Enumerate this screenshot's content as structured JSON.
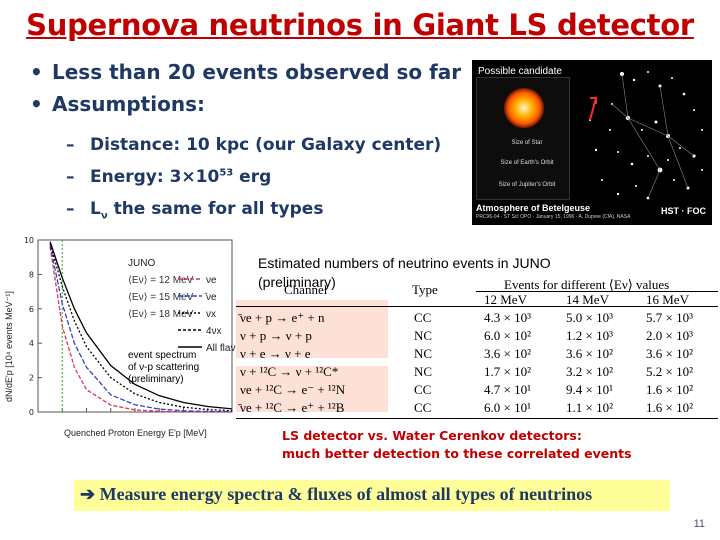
{
  "title": "Supernova neutrinos in Giant LS detector",
  "bullets": [
    "Less than 20 events observed so far",
    "Assumptions:"
  ],
  "sub_bullets": {
    "distance": "Distance: 10 kpc (our Galaxy center)",
    "energy_prefix": "Energy: 3×10",
    "energy_exp": "53",
    "energy_suffix": " erg",
    "lum_prefix": "L",
    "lum_sub": "ν",
    "lum_suffix": " the same for all types"
  },
  "betelgeuse": {
    "candidate": "Possible candidate",
    "size_star": "Size of Star",
    "size_earth": "Size of Earth's Orbit",
    "size_jupiter": "Size of Jupiter's Orbit",
    "caption": "Atmosphere of Betelgeuse",
    "caption_small": "PRC96-04 · ST ScI OPO · January 15, 1996 · A. Dupree (CfA), NASA",
    "credit": "HST · FOC"
  },
  "spectrum": {
    "ylabel": "dN/dE'p [10⁴ events MeV⁻¹]",
    "xlabel": "Quenched Proton Energy E'p [MeV]",
    "legend": [
      {
        "label": "⟨Eν⟩ = 12 MeV",
        "flavor": "νe"
      },
      {
        "label": "⟨Eν⟩ = 15 MeV",
        "flavor": "̄νe"
      },
      {
        "label": "⟨Eν⟩ = 18 MeV",
        "flavor": "νx"
      },
      {
        "label": "",
        "flavor": "4νx"
      },
      {
        "label": "",
        "flavor": "All flavors"
      }
    ],
    "legend_title": "JUNO",
    "event_label": [
      "event spectrum",
      "of ν-p scattering",
      "(preliminary)"
    ],
    "colors": {
      "nue": "#e0315a",
      "nuebar": "#3244c8",
      "nux": "#000000",
      "threshold": "#22aa22"
    }
  },
  "chart_data": {
    "type": "line",
    "title": "",
    "xlabel": "Quenched Proton Energy E'p [MeV]",
    "ylabel": "dN/dE'p [10⁴ events MeV⁻¹]",
    "xlim": [
      0,
      1.6
    ],
    "ylim": [
      0,
      10
    ],
    "xticks": [
      "0",
      "0.2",
      "0.4",
      "0.6",
      "0.8",
      "1",
      "1.2",
      "1.4",
      "1.6"
    ],
    "yticks": [
      "0",
      "2",
      "4",
      "6",
      "8",
      "10"
    ],
    "grid": false,
    "legend_position": "top-right",
    "x": [
      0.1,
      0.2,
      0.3,
      0.4,
      0.6,
      0.8,
      1.0,
      1.2,
      1.4,
      1.6
    ],
    "series": [
      {
        "name": "⟨Eν⟩ = 12 MeV",
        "values": [
          9.6,
          5.0,
          2.6,
          1.3,
          0.4,
          0.12,
          0.04,
          0.01,
          0.0,
          0.0
        ]
      },
      {
        "name": "⟨Eν⟩ = 15 MeV",
        "values": [
          9.7,
          6.3,
          4.0,
          2.6,
          1.0,
          0.42,
          0.17,
          0.07,
          0.03,
          0.01
        ]
      },
      {
        "name": "⟨Eν⟩ = 18 MeV",
        "values": [
          9.8,
          7.3,
          5.3,
          3.8,
          2.0,
          1.05,
          0.55,
          0.28,
          0.14,
          0.07
        ]
      },
      {
        "name": "All flavors",
        "values": [
          9.9,
          7.8,
          6.0,
          4.6,
          2.7,
          1.6,
          0.95,
          0.55,
          0.32,
          0.18
        ]
      }
    ],
    "threshold_x": 0.2
  },
  "estimates_title": [
    "Estimated numbers of neutrino events in JUNO",
    "(preliminary)"
  ],
  "table": {
    "col_channel": "Channel",
    "col_type": "Type",
    "col_group": "Events for different ⟨Eν⟩ values",
    "energies": [
      "12 MeV",
      "14 MeV",
      "16 MeV"
    ],
    "rows": [
      {
        "channel": "̄νe + p → e⁺ + n",
        "type": "CC",
        "v": [
          "4.3 × 10³",
          "5.0 × 10³",
          "5.7 × 10³"
        ]
      },
      {
        "channel": "ν + p → ν + p",
        "type": "NC",
        "v": [
          "6.0 × 10²",
          "1.2 × 10³",
          "2.0 × 10³"
        ]
      },
      {
        "channel": "ν + e → ν + e",
        "type": "NC",
        "v": [
          "3.6 × 10²",
          "3.6 × 10²",
          "3.6 × 10²"
        ]
      },
      {
        "channel": "ν + ¹²C → ν + ¹²C*",
        "type": "NC",
        "v": [
          "1.7 × 10²",
          "3.2 × 10²",
          "5.2 × 10²"
        ]
      },
      {
        "channel": "νe + ¹²C → e⁻ + ¹²N",
        "type": "CC",
        "v": [
          "4.7 × 10¹",
          "9.4 × 10¹",
          "1.6 × 10²"
        ]
      },
      {
        "channel": "̄νe + ¹²C → e⁺ + ¹²B",
        "type": "CC",
        "v": [
          "6.0 × 10¹",
          "1.1 × 10²",
          "1.6 × 10²"
        ]
      }
    ]
  },
  "ls_detector": [
    "LS detector vs. Water Cerenkov detectors:",
    "much better detection to these correlated events"
  ],
  "conclusion": "➔ Measure energy spectra & fluxes of almost all types of neutrinos",
  "page_number": "11"
}
